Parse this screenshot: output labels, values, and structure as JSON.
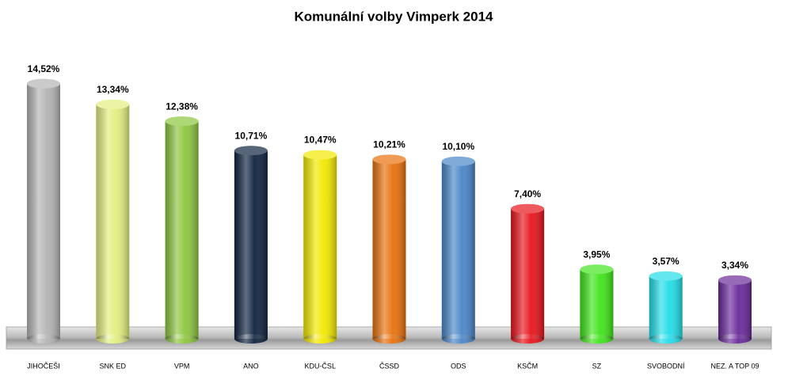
{
  "chart_data": {
    "type": "bar",
    "title": "Komunální volby Vimperk 2014",
    "categories": [
      "JIHOČEŠI",
      "SNK ED",
      "VPM",
      "ANO",
      "KDU-ČSL",
      "ČSSD",
      "ODS",
      "KSČM",
      "SZ",
      "SVOBODNÍ",
      "NEZ. A TOP 09"
    ],
    "values": [
      14.52,
      13.34,
      12.38,
      10.71,
      10.47,
      10.21,
      10.1,
      7.4,
      3.95,
      3.57,
      3.34
    ],
    "value_labels": [
      "14,52%",
      "13,34%",
      "12,38%",
      "10,71%",
      "10,47%",
      "10,21%",
      "10,10%",
      "7,40%",
      "3,95%",
      "3,57%",
      "3,34%"
    ],
    "colors": [
      "#b4b4b4",
      "#e2ee7e",
      "#8cc63e",
      "#0f2340",
      "#f2e800",
      "#e8700c",
      "#4a86c8",
      "#e8141b",
      "#3fe41a",
      "#22dde8",
      "#6a2a9a"
    ]
  }
}
